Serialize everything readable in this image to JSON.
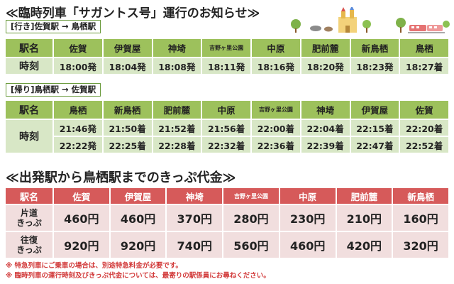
{
  "section1": {
    "title": "≪臨時列車「サガントス号」運行のお知らせ≫",
    "outbound": {
      "route": "[行き]佐賀駅 → 鳥栖駅",
      "header_label": "駅名",
      "stations": [
        "佐賀",
        "伊賀屋",
        "神埼",
        "吉野ヶ里公園",
        "中原",
        "肥前麓",
        "新鳥栖",
        "鳥栖"
      ],
      "row_label": "時刻",
      "times": [
        "18:00発",
        "18:04発",
        "18:08発",
        "18:11発",
        "18:16発",
        "18:20発",
        "18:23発",
        "18:27着"
      ]
    },
    "return": {
      "route": "[帰り]鳥栖駅 → 佐賀駅",
      "header_label": "駅名",
      "stations": [
        "鳥栖",
        "新鳥栖",
        "肥前麓",
        "中原",
        "吉野ヶ里公園",
        "神埼",
        "伊賀屋",
        "佐賀"
      ],
      "row_label": "時刻",
      "times_1": [
        "21:46発",
        "21:50着",
        "21:52着",
        "21:56着",
        "22:00着",
        "22:04着",
        "22:15着",
        "22:20着"
      ],
      "times_2": [
        "22:22発",
        "22:25着",
        "22:28着",
        "22:32着",
        "22:36着",
        "22:39着",
        "22:47着",
        "22:52着"
      ]
    }
  },
  "section2": {
    "title": "≪出発駅から鳥栖駅までのきっぷ代金≫",
    "header_label": "駅名",
    "stations": [
      "佐賀",
      "伊賀屋",
      "神埼",
      "吉野ヶ里公園",
      "中原",
      "肥前麓",
      "新鳥栖"
    ],
    "oneway_label_1": "片道",
    "oneway_label_2": "きっぷ",
    "oneway": [
      "460円",
      "460円",
      "370円",
      "280円",
      "230円",
      "210円",
      "160円"
    ],
    "round_label_1": "往復",
    "round_label_2": "きっぷ",
    "round": [
      "920円",
      "920円",
      "740円",
      "560円",
      "460円",
      "420円",
      "320円"
    ]
  },
  "notes": [
    "※ 特急列車にご乗車の場合は、別途特急料金が必要です。",
    "※ 臨時列車の運行時刻及びきっぷ代金については、最寄りの駅係員にお尋ねください。"
  ],
  "colors": {
    "green_head": "#9dc15c",
    "green_row": "#d8e7c6",
    "red_head": "#d65a5a",
    "red_row": "#f1dede",
    "note": "#d23b3b"
  },
  "decoration_icons": [
    "castle-icon",
    "tree-icon",
    "train-icon"
  ]
}
